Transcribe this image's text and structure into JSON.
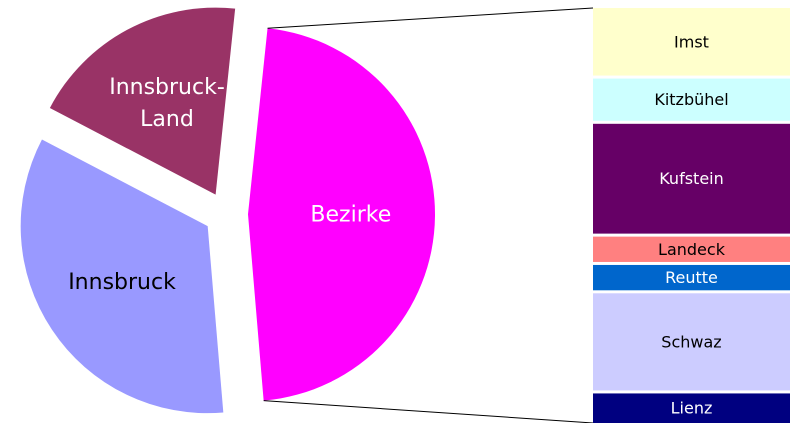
{
  "chart_data": {
    "type": "pie-of-bar",
    "categories": [
      "Innsbruck",
      "Innsbruck-Land",
      "Bezirke"
    ],
    "values": [
      34,
      19,
      47
    ],
    "colors": [
      "#9999ff",
      "#993366",
      "#ff00ff"
    ],
    "label_colors": [
      "#000000",
      "#ffffff",
      "#ffffff"
    ],
    "breakdown": {
      "categories": [
        "Imst",
        "Kitzbühel",
        "Kufstein",
        "Landeck",
        "Reutte",
        "Schwaz",
        "Lienz"
      ],
      "values": [
        8,
        5,
        13,
        3,
        3,
        11.5,
        3.5
      ],
      "colors": [
        "#ffffcc",
        "#ccffff",
        "#660066",
        "#ff8080",
        "#0066cc",
        "#ccccff",
        "#000080"
      ],
      "label_colors": [
        "#000000",
        "#000000",
        "#ffffff",
        "#000000",
        "#ffffff",
        "#000000",
        "#ffffff"
      ]
    }
  }
}
